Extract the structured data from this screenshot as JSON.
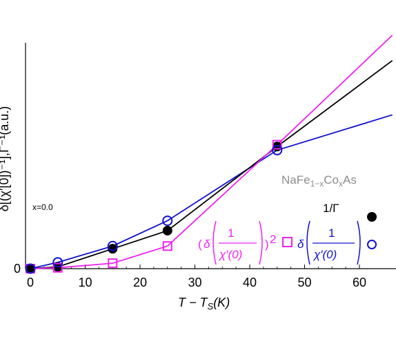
{
  "chart_data": {
    "type": "line",
    "xlabel": "T − T",
    "xlabel_sub": "S",
    "xlabel_unit": "(K)",
    "ylabel": "δ[(χ′[0])⁻¹],Γ⁻¹(a.u.)",
    "x_ticks": [
      "0",
      "10",
      "20",
      "30",
      "40",
      "50",
      "60"
    ],
    "y_tick_zero": "0",
    "xlim": [
      -1,
      66
    ],
    "ylim": [
      -0.1,
      10
    ],
    "annotation": "x=0.0",
    "material": {
      "base": "NaFe",
      "sub1": "1−x",
      "mid": "Co",
      "sub2": "x",
      "end": "As"
    },
    "colors": {
      "gamma": "#000000",
      "chi_sq": "#ee22ee",
      "chi": "#1010d0"
    },
    "legend": {
      "gamma_label": "1/Γ",
      "chi_sq_numer": "1",
      "chi_sq_denom": "χ′(0)",
      "chi_sq_power": "2",
      "chi_numer": "1",
      "chi_denom": "χ′(0)",
      "delta": "δ"
    },
    "series": [
      {
        "marker": "filled-circle",
        "color": "#000000",
        "x": [
          0,
          5,
          15,
          25,
          45
        ],
        "y": [
          0,
          0.1,
          1.1,
          2.1,
          6.75
        ],
        "line_x": [
          0,
          5,
          15,
          25,
          45,
          66
        ],
        "line_y": [
          0,
          0.1,
          1.1,
          2.1,
          6.75,
          11.5
        ]
      },
      {
        "marker": "open-square",
        "color": "#ee22ee",
        "x": [
          0,
          5,
          15,
          25,
          45
        ],
        "y": [
          0,
          0.05,
          0.3,
          1.25,
          6.85
        ],
        "line_x": [
          0,
          5,
          15,
          25,
          45,
          66
        ],
        "line_y": [
          0,
          0.05,
          0.3,
          1.25,
          6.85,
          12.9
        ]
      },
      {
        "marker": "open-circle",
        "color": "#1010d0",
        "x": [
          0,
          5,
          15,
          25,
          45
        ],
        "y": [
          0,
          0.35,
          1.25,
          2.65,
          6.55
        ],
        "line_x": [
          0,
          5,
          15,
          25,
          45,
          66
        ],
        "line_y": [
          0,
          0.35,
          1.25,
          2.65,
          6.55,
          8.5
        ]
      }
    ]
  }
}
